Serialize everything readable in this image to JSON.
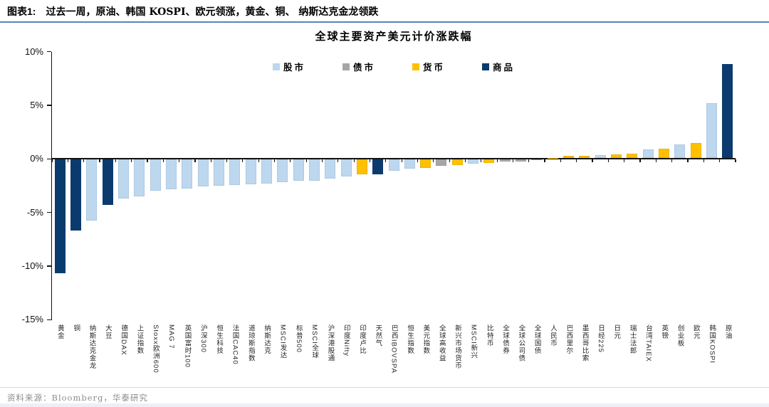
{
  "header": {
    "prefix": "图表1:",
    "title": "过去一周，原油、韩国 KOSPI、欧元领涨，黄金、铜、 纳斯达克金龙领跌"
  },
  "chart": {
    "title": "全球主要资产美元计价涨跌幅",
    "legend": [
      {
        "label": "股市",
        "key": "equity",
        "color": "#BDD7EE"
      },
      {
        "label": "债市",
        "key": "bond",
        "color": "#A6A6A6"
      },
      {
        "label": "货币",
        "key": "currency",
        "color": "#FFC000"
      },
      {
        "label": "商品",
        "key": "commodity",
        "color": "#0B3A6F"
      }
    ]
  },
  "chart_data": {
    "type": "bar",
    "title": "全球主要资产美元计价涨跌幅",
    "unit": "%",
    "ylim": [
      -15,
      10
    ],
    "yticks": [
      10,
      5,
      0,
      -5,
      -10,
      -15
    ],
    "ytick_labels": [
      "10%",
      "5%",
      "0%",
      "-5%",
      "-10%",
      "-15%"
    ],
    "grid": false,
    "legend_position": "top",
    "categories": [
      "黄金",
      "铜",
      "纳斯达克金龙",
      "大豆",
      "德国DAX",
      "上证指数",
      "Stoxx欧洲600",
      "MAG 7",
      "英国富时100",
      "沪深300",
      "恒生科技",
      "法国CAC40",
      "道琼斯指数",
      "纳斯达克",
      "MSCI发达",
      "标普500",
      "MSCI全球",
      "沪深港股通",
      "印度Nifty",
      "印度卢比",
      "天然气",
      "巴西IBOVSPA",
      "恒生指数",
      "美元指数",
      "全球高收益",
      "新兴市场货币",
      "MSCI新兴",
      "比特币",
      "全球债券",
      "全球公司债",
      "全球国债",
      "人民币",
      "巴西里尔",
      "墨西哥比索",
      "日经225",
      "日元",
      "瑞士法郎",
      "台湾TAIEX",
      "英镑",
      "创业板",
      "欧元",
      "韩国KOSPI",
      "原油"
    ],
    "values": [
      -10.6,
      -6.6,
      -5.7,
      -4.2,
      -3.6,
      -3.4,
      -2.9,
      -2.8,
      -2.7,
      -2.5,
      -2.45,
      -2.35,
      -2.3,
      -2.25,
      -2.1,
      -2.0,
      -1.95,
      -1.75,
      -1.55,
      -1.35,
      -1.35,
      -1.05,
      -0.85,
      -0.75,
      -0.6,
      -0.5,
      -0.4,
      -0.3,
      -0.2,
      -0.2,
      -0.05,
      0.05,
      0.2,
      0.25,
      0.3,
      0.35,
      0.4,
      0.8,
      0.9,
      1.25,
      1.4,
      5.1,
      8.8
    ],
    "groups": [
      "commodity",
      "commodity",
      "equity",
      "commodity",
      "equity",
      "equity",
      "equity",
      "equity",
      "equity",
      "equity",
      "equity",
      "equity",
      "equity",
      "equity",
      "equity",
      "equity",
      "equity",
      "equity",
      "equity",
      "currency",
      "commodity",
      "equity",
      "equity",
      "currency",
      "bond",
      "currency",
      "equity",
      "currency",
      "bond",
      "bond",
      "bond",
      "currency",
      "currency",
      "currency",
      "equity",
      "currency",
      "currency",
      "equity",
      "currency",
      "equity",
      "currency",
      "equity",
      "commodity"
    ]
  },
  "source": {
    "text": "资料来源：Bloomberg，华泰研究"
  }
}
